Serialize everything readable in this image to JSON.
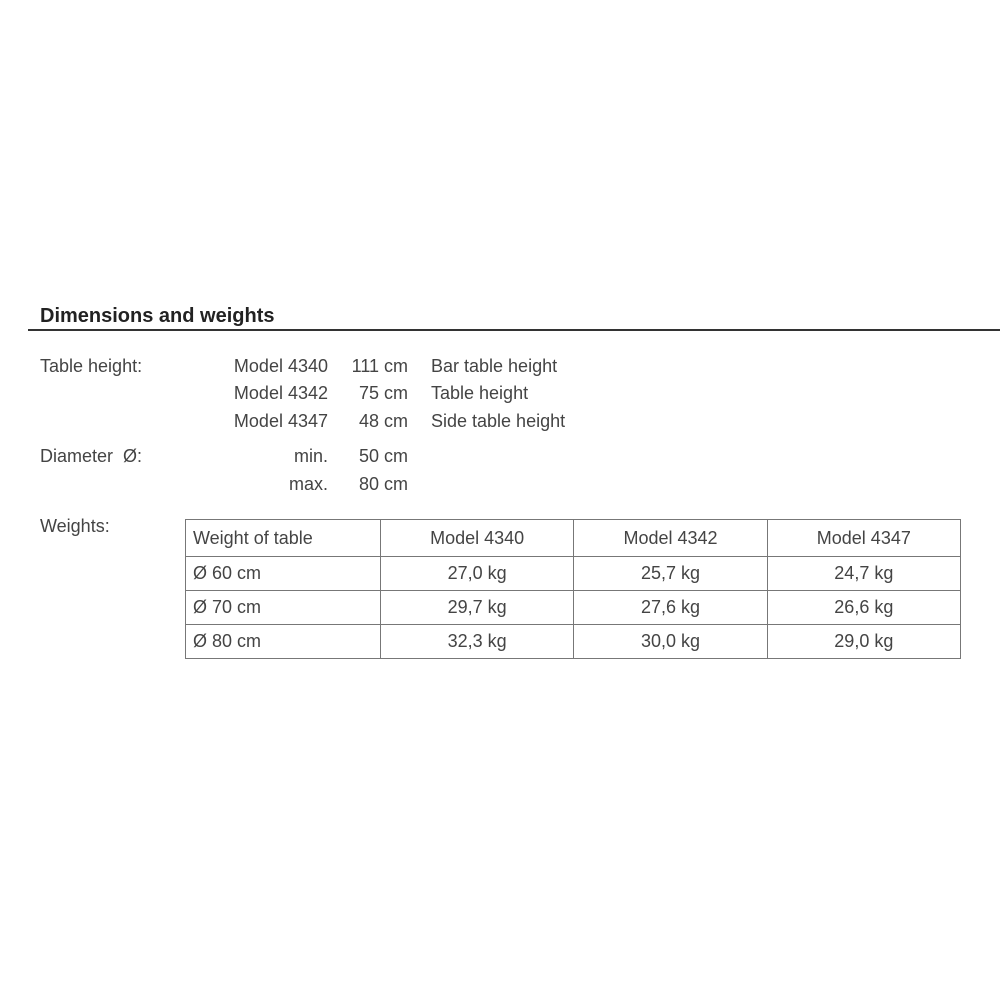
{
  "section_title": "Dimensions and weights",
  "table_height": {
    "label": "Table height:",
    "rows": [
      {
        "model": "Model 4340",
        "value": "111 cm",
        "description": "Bar table height"
      },
      {
        "model": "Model 4342",
        "value": "75 cm",
        "description": "Table height"
      },
      {
        "model": "Model 4347",
        "value": "48 cm",
        "description": "Side table height"
      }
    ]
  },
  "diameter": {
    "label": "Diameter  Ø:",
    "rows": [
      {
        "key": "min.",
        "value": "50 cm"
      },
      {
        "key": "max.",
        "value": "80 cm"
      }
    ]
  },
  "weights": {
    "label": "Weights:",
    "headers": [
      "Weight of table",
      "Model 4340",
      "Model 4342",
      "Model 4347"
    ],
    "rows": [
      [
        "Ø 60 cm",
        "27,0 kg",
        "25,7 kg",
        "24,7 kg"
      ],
      [
        "Ø 70 cm",
        "29,7 kg",
        "27,6 kg",
        "26,6 kg"
      ],
      [
        "Ø 80 cm",
        "32,3 kg",
        "30,0 kg",
        "29,0 kg"
      ]
    ]
  }
}
